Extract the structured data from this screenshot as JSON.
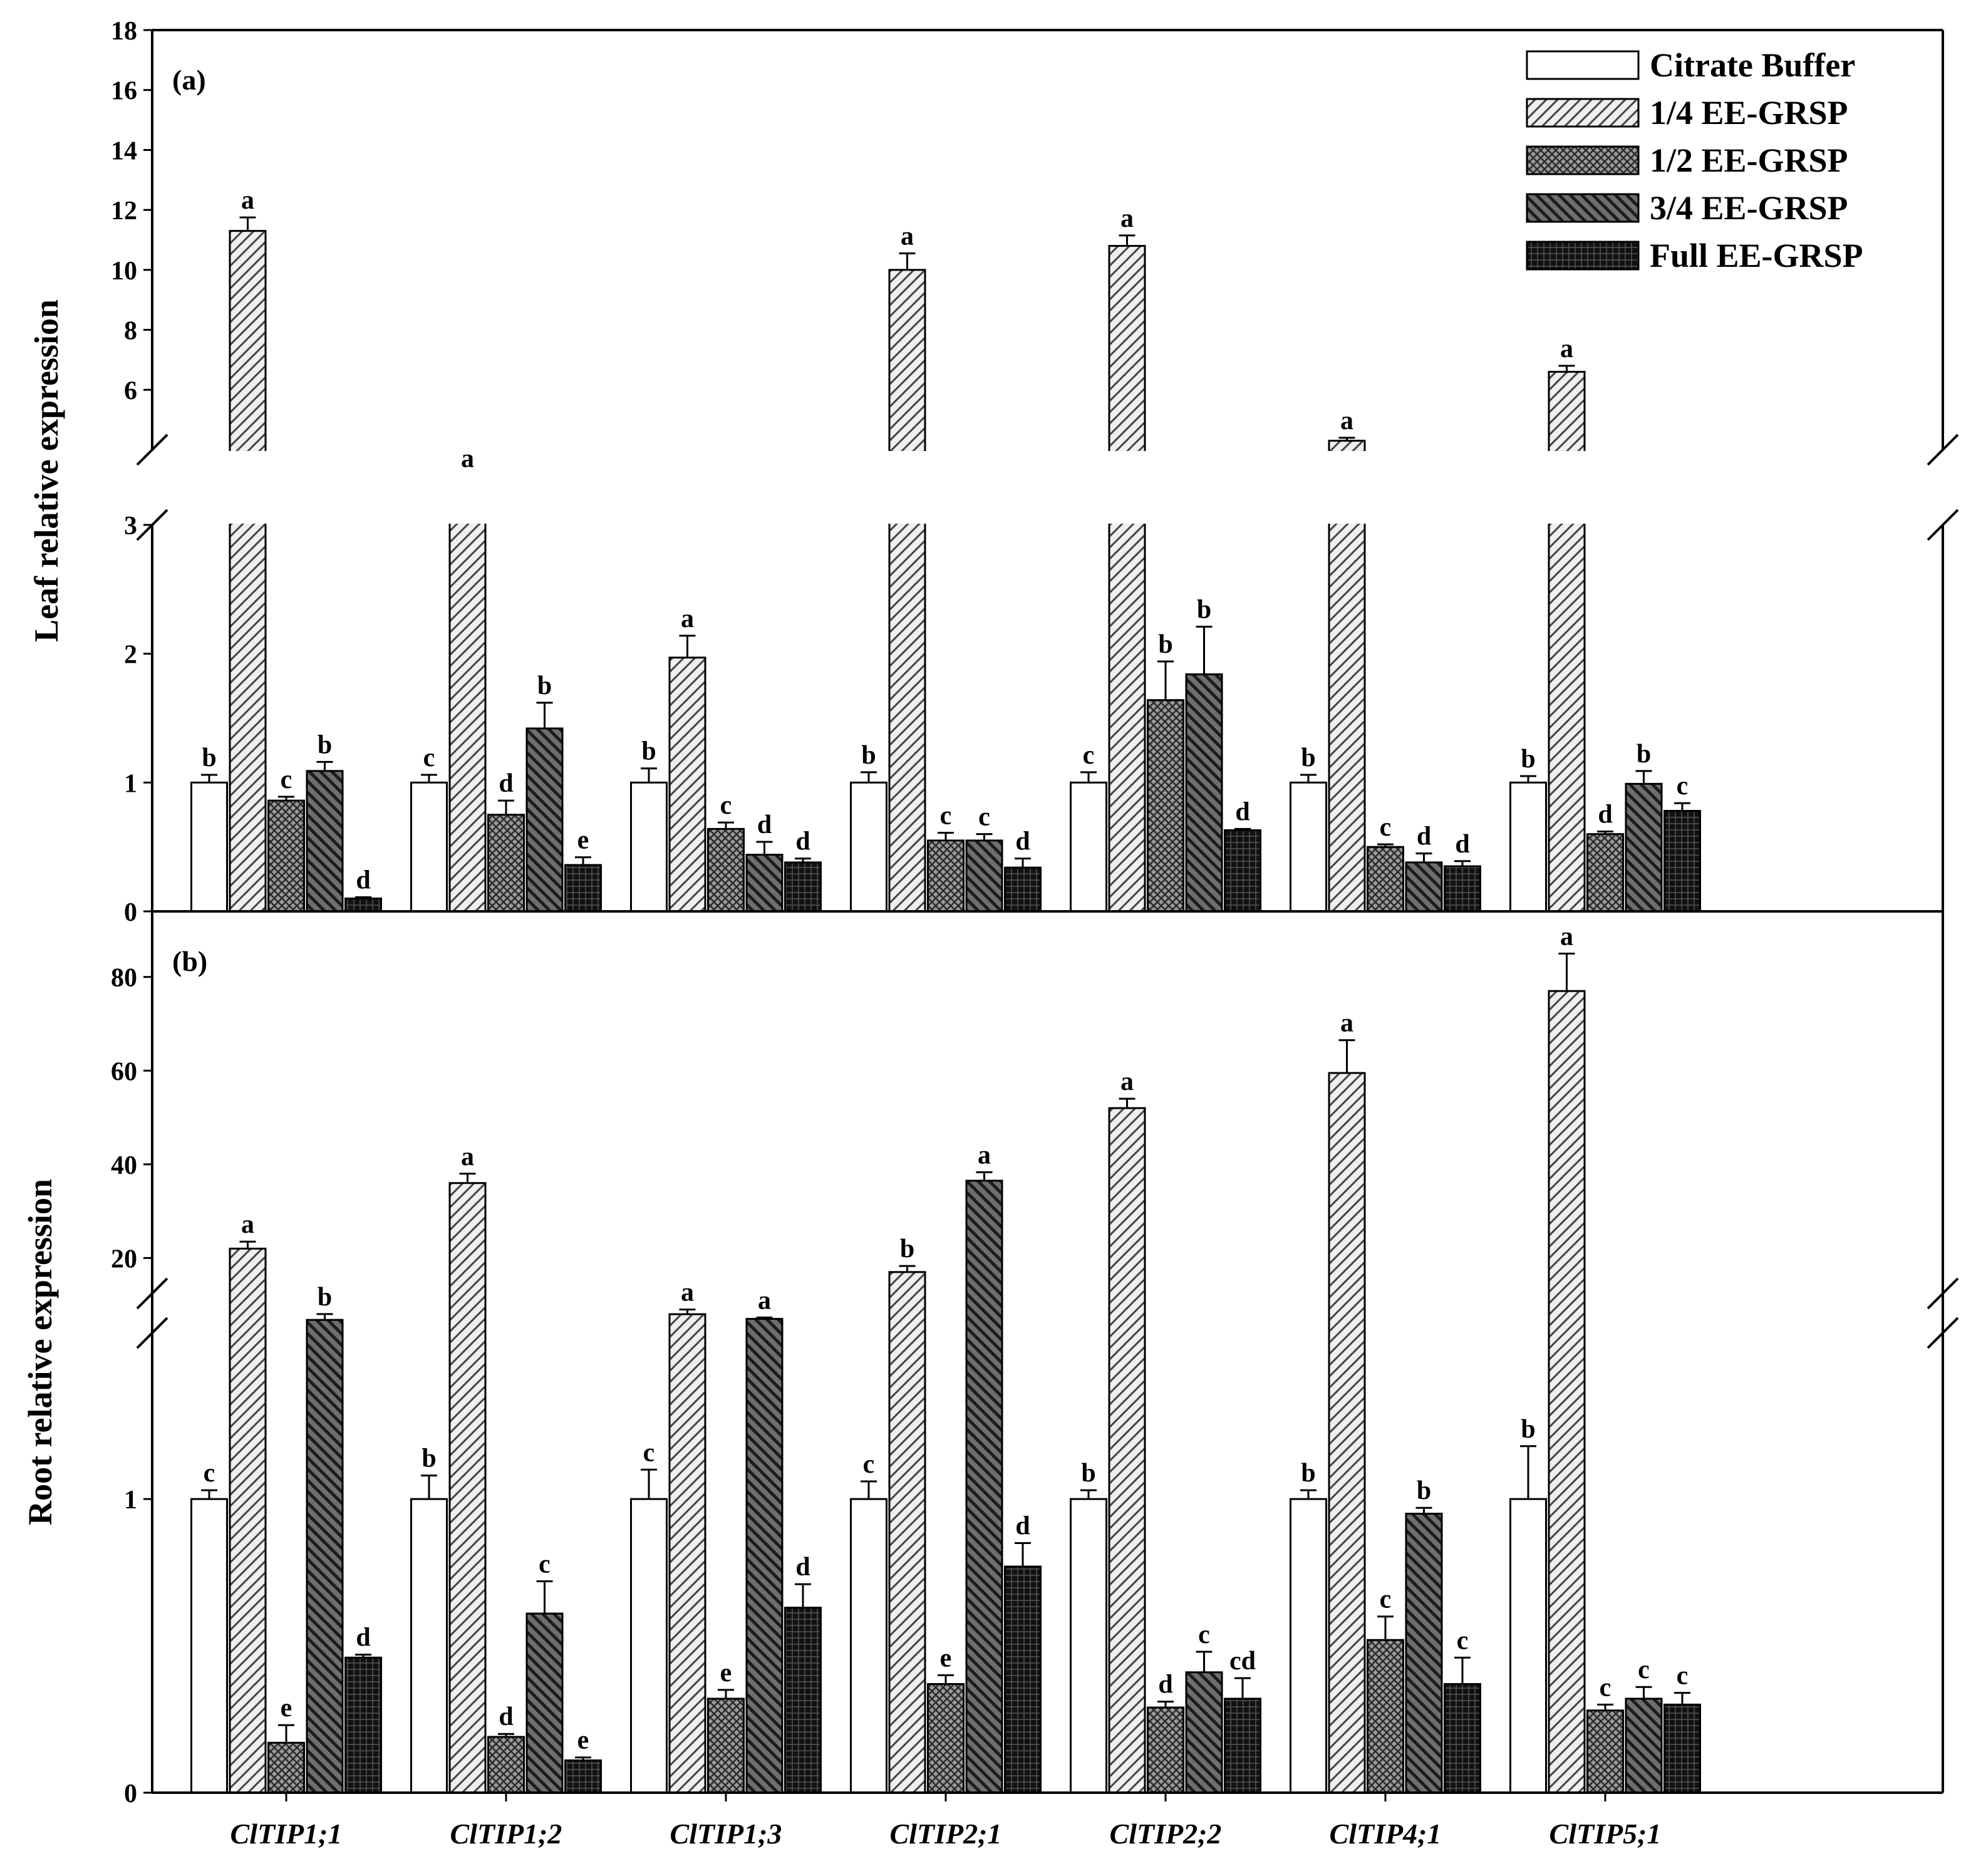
{
  "chart_data": [
    {
      "panel": "(a)",
      "type": "bar",
      "ylabel": "Leaf relative expression",
      "axis_break": true,
      "ylim_lower": [
        0,
        3
      ],
      "ylim_upper": [
        4,
        18
      ],
      "yticks_lower": [
        "0",
        "1",
        "2",
        "3"
      ],
      "yticks_upper": [
        "6",
        "8",
        "10",
        "12",
        "14",
        "16",
        "18"
      ],
      "categories": [
        "ClTIP1;1",
        "ClTIP1;2",
        "ClTIP1;3",
        "ClTIP2;1",
        "ClTIP2;2",
        "ClTIP4;1",
        "ClTIP5;1"
      ],
      "series": [
        {
          "name": "Citrate Buffer",
          "values": [
            1.0,
            1.0,
            1.0,
            1.0,
            1.0,
            1.0,
            1.0
          ],
          "errors": [
            0.06,
            0.06,
            0.11,
            0.08,
            0.08,
            0.06,
            0.05
          ],
          "letters": [
            "b",
            "c",
            "b",
            "b",
            "c",
            "b",
            "b"
          ]
        },
        {
          "name": "1/4 EE-GRSP",
          "values": [
            11.3,
            3.05,
            1.97,
            10.0,
            10.8,
            4.3,
            6.6
          ],
          "errors": [
            0.45,
            0.08,
            0.17,
            0.55,
            0.35,
            0.1,
            0.2
          ],
          "letters": [
            "a",
            "a",
            "a",
            "a",
            "a",
            "a",
            "a"
          ]
        },
        {
          "name": "1/2 EE-GRSP",
          "values": [
            0.86,
            0.75,
            0.64,
            0.55,
            1.64,
            0.5,
            0.6
          ],
          "errors": [
            0.03,
            0.11,
            0.05,
            0.06,
            0.3,
            0.02,
            0.02
          ],
          "letters": [
            "c",
            "d",
            "c",
            "c",
            "b",
            "c",
            "d"
          ]
        },
        {
          "name": "3/4 EE-GRSP",
          "values": [
            1.09,
            1.42,
            0.44,
            0.55,
            1.84,
            0.38,
            0.99
          ],
          "errors": [
            0.07,
            0.2,
            0.1,
            0.05,
            0.37,
            0.07,
            0.1
          ],
          "letters": [
            "b",
            "b",
            "d",
            "c",
            "b",
            "d",
            "b"
          ]
        },
        {
          "name": "Full EE-GRSP",
          "values": [
            0.1,
            0.36,
            0.38,
            0.34,
            0.63,
            0.35,
            0.78
          ],
          "errors": [
            0.01,
            0.06,
            0.03,
            0.07,
            0.01,
            0.04,
            0.06
          ],
          "letters": [
            "d",
            "e",
            "d",
            "d",
            "d",
            "d",
            "c"
          ]
        }
      ]
    },
    {
      "panel": "(b)",
      "type": "bar",
      "ylabel": "Root relative expression",
      "axis_break": true,
      "ylim_lower": [
        0,
        1.7
      ],
      "ylim_upper": [
        4,
        92
      ],
      "yticks_lower": [
        "0",
        "1"
      ],
      "yticks_upper": [
        "20",
        "40",
        "60",
        "80"
      ],
      "categories": [
        "ClTIP1;1",
        "ClTIP1;2",
        "ClTIP1;3",
        "ClTIP2;1",
        "ClTIP2;2",
        "ClTIP4;1",
        "ClTIP5;1"
      ],
      "series": [
        {
          "name": "Citrate Buffer",
          "values": [
            1.0,
            1.0,
            1.0,
            1.0,
            1.0,
            1.0,
            1.0
          ],
          "errors": [
            0.03,
            0.08,
            0.1,
            0.06,
            0.03,
            0.03,
            0.18
          ],
          "letters": [
            "c",
            "b",
            "c",
            "c",
            "b",
            "b",
            "b"
          ]
        },
        {
          "name": "1/4 EE-GRSP",
          "values": [
            22,
            36,
            8,
            17,
            52,
            59.5,
            77
          ],
          "errors": [
            1.5,
            2,
            1,
            1.3,
            2,
            7,
            8
          ],
          "letters": [
            "a",
            "a",
            "a",
            "b",
            "a",
            "a",
            "a"
          ]
        },
        {
          "name": "1/2 EE-GRSP",
          "values": [
            0.17,
            0.19,
            0.32,
            0.37,
            0.29,
            0.52,
            0.28
          ],
          "errors": [
            0.06,
            0.01,
            0.03,
            0.03,
            0.02,
            0.08,
            0.02
          ],
          "letters": [
            "e",
            "d",
            "e",
            "e",
            "d",
            "c",
            "c"
          ]
        },
        {
          "name": "3/4 EE-GRSP",
          "values": [
            1.61,
            0.61,
            7,
            36.5,
            0.41,
            0.95,
            0.32
          ],
          "errors": [
            0.02,
            0.11,
            0.3,
            1.8,
            0.07,
            0.02,
            0.04
          ],
          "letters": [
            "b",
            "c",
            "a",
            "a",
            "c",
            "b",
            "c"
          ]
        },
        {
          "name": "Full EE-GRSP",
          "values": [
            0.46,
            0.11,
            0.63,
            0.77,
            0.32,
            0.37,
            0.3
          ],
          "errors": [
            0.01,
            0.01,
            0.08,
            0.08,
            0.07,
            0.09,
            0.04
          ],
          "letters": [
            "d",
            "e",
            "d",
            "d",
            "cd",
            "c",
            "c"
          ]
        }
      ]
    }
  ],
  "legend": [
    {
      "label": "Citrate Buffer",
      "pattern": "empty"
    },
    {
      "label": "1/4 EE-GRSP",
      "pattern": "hatch-light"
    },
    {
      "label": "1/2 EE-GRSP",
      "pattern": "crosshatch"
    },
    {
      "label": "3/4 EE-GRSP",
      "pattern": "hatch-dark"
    },
    {
      "label": "Full EE-GRSP",
      "pattern": "grid-dark"
    }
  ]
}
